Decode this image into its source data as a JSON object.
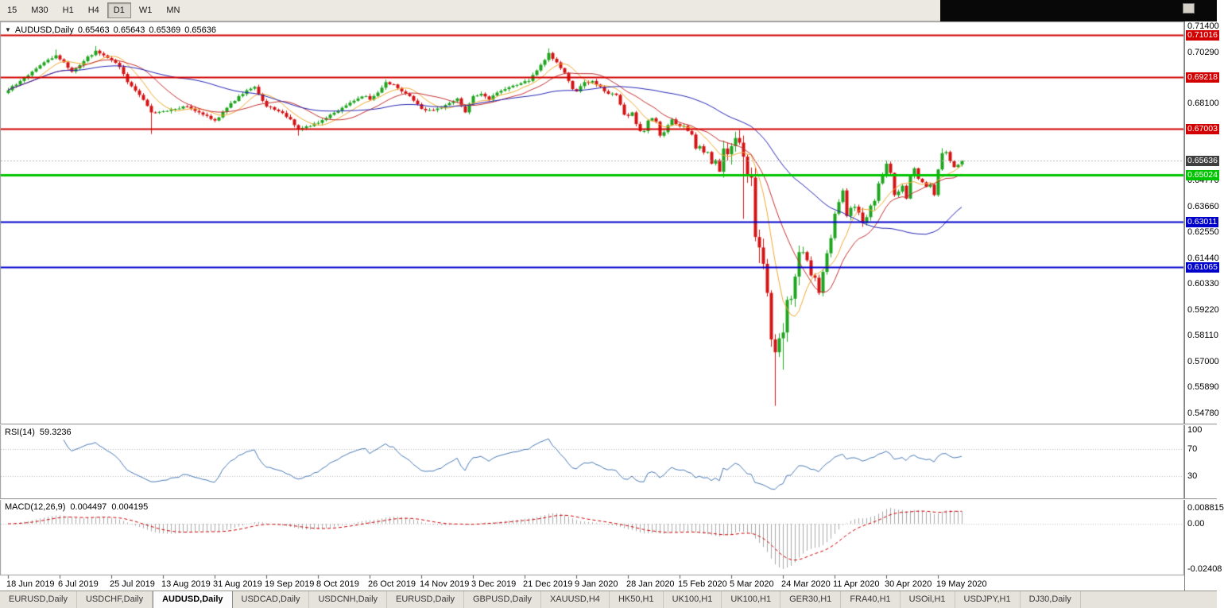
{
  "toolbar": {
    "timeframes": [
      "15",
      "M30",
      "H1",
      "H4",
      "D1",
      "W1",
      "MN"
    ],
    "active_timeframe": "D1"
  },
  "icons": {
    "chart_menu": "▼"
  },
  "chart": {
    "symbol_label": "AUDUSD,Daily",
    "open": "0.65463",
    "high": "0.65643",
    "low": "0.65369",
    "close": "0.65636"
  },
  "price_scale": {
    "ticks": [
      0.714,
      0.7029,
      0.681,
      0.6477,
      0.6366,
      0.6255,
      0.6144,
      0.6033,
      0.5922,
      0.5811,
      0.57,
      0.5589,
      0.5478
    ],
    "levels": [
      {
        "value": 0.71016,
        "color": "#d20000",
        "line_width": 2
      },
      {
        "value": 0.69218,
        "color": "#d20000",
        "line_width": 2
      },
      {
        "value": 0.67003,
        "color": "#d20000",
        "line_width": 2
      },
      {
        "value": 0.65024,
        "color": "#00c400",
        "line_width": 3
      },
      {
        "value": 0.63011,
        "color": "#0000cc",
        "line_width": 2
      },
      {
        "value": 0.61065,
        "color": "#0000cc",
        "line_width": 2
      }
    ],
    "current_price": 0.65636,
    "current_price_bg": "#3f3f3f"
  },
  "rsi": {
    "label": "RSI(14)",
    "value": "59.3236",
    "period": 14,
    "scale_ticks": [
      100,
      70,
      30
    ],
    "levels": [
      70,
      30
    ],
    "color": "#4a7ab5"
  },
  "macd": {
    "label": "MACD(12,26,9)",
    "main_value": "0.004497",
    "signal_value": "0.004195",
    "fast": 12,
    "slow": 26,
    "signal": 9,
    "scale_max_label": "0.008815",
    "scale_zero_label": "0.00",
    "scale_min_label": "-0.02408",
    "scale_max": 0.008815,
    "scale_min": -0.02408,
    "hist_color": "#a8a8a8",
    "signal_color": "#cc0000"
  },
  "time_axis": {
    "labels": [
      [
        "18 Jun 2019",
        0
      ],
      [
        "6 Jul 2019",
        13
      ],
      [
        "25 Jul 2019",
        26
      ],
      [
        "13 Aug 2019",
        39
      ],
      [
        "31 Aug 2019",
        52
      ],
      [
        "19 Sep 2019",
        65
      ],
      [
        "8 Oct 2019",
        78
      ],
      [
        "26 Oct 2019",
        91
      ],
      [
        "14 Nov 2019",
        104
      ],
      [
        "3 Dec 2019",
        117
      ],
      [
        "21 Dec 2019",
        130
      ],
      [
        "9 Jan 2020",
        143
      ],
      [
        "28 Jan 2020",
        156
      ],
      [
        "15 Feb 2020",
        169
      ],
      [
        "5 Mar 2020",
        182
      ],
      [
        "24 Mar 2020",
        195
      ],
      [
        "11 Apr 2020",
        208
      ],
      [
        "30 Apr 2020",
        221
      ],
      [
        "19 May 2020",
        234
      ]
    ]
  },
  "tabs": [
    {
      "label": "EURUSD,Daily"
    },
    {
      "label": "USDCHF,Daily"
    },
    {
      "label": "AUDUSD,Daily",
      "active": true
    },
    {
      "label": "USDCAD,Daily"
    },
    {
      "label": "USDCNH,Daily"
    },
    {
      "label": "EURUSD,Daily"
    },
    {
      "label": "GBPUSD,Daily"
    },
    {
      "label": "XAUUSD,H4"
    },
    {
      "label": "HK50,H1"
    },
    {
      "label": "UK100,H1"
    },
    {
      "label": "UK100,H1"
    },
    {
      "label": "GER30,H1"
    },
    {
      "label": "FRA40,H1"
    },
    {
      "label": "USOil,H1"
    },
    {
      "label": "USDJPY,H1"
    },
    {
      "label": "DJ30,Daily"
    }
  ],
  "colors": {
    "bull": "#1fa51f",
    "bear": "#d41414",
    "current_line": "#b0b0b0"
  },
  "chart_data": {
    "type": "candlestick",
    "symbol": "AUDUSD",
    "timeframe": "Daily",
    "bars": 241,
    "price_range": {
      "max": 0.714,
      "min": 0.5478
    },
    "last_bar": {
      "open": 0.65463,
      "high": 0.65643,
      "low": 0.65369,
      "close": 0.65636
    },
    "moving_averages": [
      {
        "period": 8,
        "color": "#efa830"
      },
      {
        "period": 16,
        "color": "#c53030"
      },
      {
        "period": 44,
        "color": "#2525b4"
      }
    ],
    "close_anchors": [
      [
        0,
        0.6865
      ],
      [
        3,
        0.6905
      ],
      [
        6,
        0.6945
      ],
      [
        9,
        0.6985
      ],
      [
        12,
        0.7015
      ],
      [
        14,
        0.6985
      ],
      [
        16,
        0.6945
      ],
      [
        19,
        0.699
      ],
      [
        22,
        0.7035
      ],
      [
        24,
        0.7015
      ],
      [
        26,
        0.6995
      ],
      [
        28,
        0.6965
      ],
      [
        30,
        0.69
      ],
      [
        33,
        0.6845
      ],
      [
        36,
        0.677
      ],
      [
        39,
        0.6775
      ],
      [
        42,
        0.6785
      ],
      [
        45,
        0.6795
      ],
      [
        48,
        0.677
      ],
      [
        50,
        0.6755
      ],
      [
        52,
        0.6735
      ],
      [
        55,
        0.679
      ],
      [
        58,
        0.684
      ],
      [
        60,
        0.6865
      ],
      [
        62,
        0.688
      ],
      [
        65,
        0.6795
      ],
      [
        68,
        0.6775
      ],
      [
        71,
        0.674
      ],
      [
        73,
        0.67
      ],
      [
        75,
        0.671
      ],
      [
        78,
        0.6725
      ],
      [
        81,
        0.676
      ],
      [
        84,
        0.679
      ],
      [
        87,
        0.682
      ],
      [
        90,
        0.684
      ],
      [
        91,
        0.6825
      ],
      [
        93,
        0.6855
      ],
      [
        95,
        0.69
      ],
      [
        97,
        0.689
      ],
      [
        99,
        0.686
      ],
      [
        101,
        0.684
      ],
      [
        104,
        0.6785
      ],
      [
        107,
        0.678
      ],
      [
        109,
        0.679
      ],
      [
        111,
        0.681
      ],
      [
        113,
        0.683
      ],
      [
        115,
        0.677
      ],
      [
        117,
        0.684
      ],
      [
        119,
        0.685
      ],
      [
        121,
        0.6825
      ],
      [
        123,
        0.6855
      ],
      [
        125,
        0.687
      ],
      [
        127,
        0.6885
      ],
      [
        129,
        0.6895
      ],
      [
        131,
        0.6905
      ],
      [
        133,
        0.695
      ],
      [
        135,
        0.6995
      ],
      [
        136,
        0.7025
      ],
      [
        137,
        0.7
      ],
      [
        138,
        0.6985
      ],
      [
        139,
        0.696
      ],
      [
        140,
        0.694
      ],
      [
        141,
        0.6905
      ],
      [
        142,
        0.687
      ],
      [
        143,
        0.686
      ],
      [
        145,
        0.69
      ],
      [
        147,
        0.6905
      ],
      [
        149,
        0.688
      ],
      [
        151,
        0.685
      ],
      [
        153,
        0.6845
      ],
      [
        155,
        0.676
      ],
      [
        156,
        0.6755
      ],
      [
        157,
        0.677
      ],
      [
        158,
        0.672
      ],
      [
        159,
        0.669
      ],
      [
        160,
        0.669
      ],
      [
        161,
        0.6735
      ],
      [
        162,
        0.6745
      ],
      [
        163,
        0.673
      ],
      [
        164,
        0.667
      ],
      [
        165,
        0.6685
      ],
      [
        166,
        0.6715
      ],
      [
        167,
        0.674
      ],
      [
        168,
        0.672
      ],
      [
        169,
        0.671
      ],
      [
        170,
        0.6712
      ],
      [
        171,
        0.669
      ],
      [
        172,
        0.6675
      ],
      [
        173,
        0.6615
      ],
      [
        174,
        0.6625
      ],
      [
        175,
        0.6598
      ],
      [
        176,
        0.66
      ],
      [
        177,
        0.655
      ],
      [
        178,
        0.6565
      ],
      [
        179,
        0.6515
      ],
      [
        180,
        0.6615
      ],
      [
        181,
        0.659
      ],
      [
        182,
        0.6625
      ],
      [
        183,
        0.666
      ],
      [
        184,
        0.664
      ],
      [
        185,
        0.658
      ],
      [
        186,
        0.65
      ],
      [
        187,
        0.649
      ],
      [
        188,
        0.6235
      ],
      [
        189,
        0.619
      ],
      [
        190,
        0.612
      ],
      [
        191,
        0.5995
      ],
      [
        192,
        0.5795
      ],
      [
        193,
        0.574
      ],
      [
        194,
        0.58
      ],
      [
        195,
        0.5825
      ],
      [
        196,
        0.5965
      ],
      [
        197,
        0.597
      ],
      [
        198,
        0.6065
      ],
      [
        199,
        0.617
      ],
      [
        200,
        0.617
      ],
      [
        201,
        0.6135
      ],
      [
        202,
        0.607
      ],
      [
        203,
        0.606
      ],
      [
        204,
        0.5995
      ],
      [
        205,
        0.6085
      ],
      [
        206,
        0.6165
      ],
      [
        207,
        0.623
      ],
      [
        208,
        0.6335
      ],
      [
        209,
        0.6385
      ],
      [
        210,
        0.6435
      ],
      [
        211,
        0.6325
      ],
      [
        212,
        0.636
      ],
      [
        213,
        0.6365
      ],
      [
        214,
        0.634
      ],
      [
        215,
        0.6295
      ],
      [
        216,
        0.632
      ],
      [
        217,
        0.637
      ],
      [
        218,
        0.639
      ],
      [
        219,
        0.6465
      ],
      [
        220,
        0.6495
      ],
      [
        221,
        0.655
      ],
      [
        222,
        0.651
      ],
      [
        223,
        0.6415
      ],
      [
        224,
        0.643
      ],
      [
        225,
        0.6455
      ],
      [
        226,
        0.64
      ],
      [
        227,
        0.6495
      ],
      [
        228,
        0.653
      ],
      [
        229,
        0.6485
      ],
      [
        230,
        0.647
      ],
      [
        231,
        0.645
      ],
      [
        232,
        0.646
      ],
      [
        233,
        0.6415
      ],
      [
        234,
        0.6525
      ],
      [
        235,
        0.6595
      ],
      [
        236,
        0.66
      ],
      [
        237,
        0.656
      ],
      [
        238,
        0.6535
      ],
      [
        239,
        0.6545
      ],
      [
        240,
        0.65636
      ]
    ],
    "wick_overrides": [
      {
        "i": 12,
        "h": 0.704
      },
      {
        "i": 22,
        "h": 0.7055
      },
      {
        "i": 36,
        "l": 0.6677
      },
      {
        "i": 73,
        "l": 0.667
      },
      {
        "i": 136,
        "h": 0.7045
      },
      {
        "i": 164,
        "l": 0.6662
      },
      {
        "i": 179,
        "l": 0.6543
      },
      {
        "i": 185,
        "l": 0.6313
      },
      {
        "i": 189,
        "l": 0.6123
      },
      {
        "i": 193,
        "l": 0.551
      },
      {
        "i": 195,
        "l": 0.5665
      },
      {
        "i": 235,
        "h": 0.6616
      }
    ]
  }
}
